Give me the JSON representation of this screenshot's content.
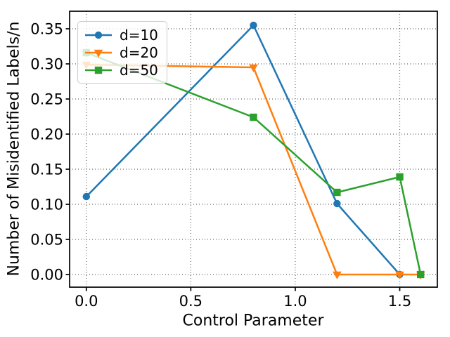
{
  "chart_data": {
    "type": "line",
    "title": "",
    "xlabel": "Control Parameter",
    "ylabel": "Number of Misidentified Labels/n",
    "xlim": [
      -0.08,
      1.68
    ],
    "ylim": [
      -0.018,
      0.375
    ],
    "xticks": [
      0.0,
      0.5,
      1.0,
      1.5
    ],
    "xtick_labels": [
      "0.0",
      "0.5",
      "1.0",
      "1.5"
    ],
    "yticks": [
      0.0,
      0.05,
      0.1,
      0.15,
      0.2,
      0.25,
      0.3,
      0.35
    ],
    "ytick_labels": [
      "0.00",
      "0.05",
      "0.10",
      "0.15",
      "0.20",
      "0.25",
      "0.30",
      "0.35"
    ],
    "grid": {
      "visible": true,
      "linestyle": "dotted",
      "color": "#666666"
    },
    "legend": {
      "position": "upper-left",
      "frame": true,
      "background": "rgba(255,255,255,0.8)"
    },
    "series": [
      {
        "name": "d=10",
        "color": "#1f77b4",
        "marker": "circle",
        "x": [
          0.0,
          0.8,
          1.2,
          1.5
        ],
        "y": [
          0.111,
          0.355,
          0.101,
          0.0
        ]
      },
      {
        "name": "d=20",
        "color": "#ff7f0e",
        "marker": "triangle-down",
        "x": [
          0.0,
          0.8,
          1.2,
          1.5,
          1.6
        ],
        "y": [
          0.299,
          0.295,
          0.0,
          0.0,
          0.0
        ]
      },
      {
        "name": "d=50",
        "color": "#2ca02c",
        "marker": "square",
        "x": [
          0.0,
          0.8,
          1.2,
          1.5,
          1.6
        ],
        "y": [
          0.316,
          0.224,
          0.117,
          0.139,
          0.0
        ]
      }
    ]
  }
}
